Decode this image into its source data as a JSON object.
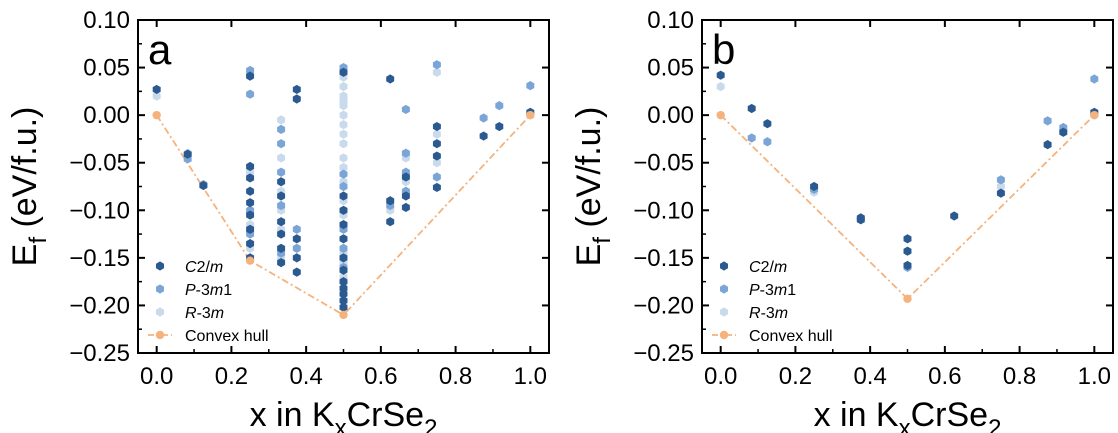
{
  "chart_data": [
    {
      "type": "scatter",
      "panel_label": "a",
      "xlabel": "x in K",
      "xlabel_sub": "x",
      "xlabel_tail": "CrSe",
      "xlabel_sub2": "2",
      "ylabel": "E",
      "ylabel_sub": "f",
      "ylabel_tail": " (eV/f.u.)",
      "xlim": [
        -0.05,
        1.05
      ],
      "ylim": [
        -0.25,
        0.1
      ],
      "xticks": [
        0.0,
        0.2,
        0.4,
        0.6,
        0.8,
        1.0
      ],
      "xtick_labels": [
        "0.0",
        "0.2",
        "0.4",
        "0.6",
        "0.8",
        "1.0"
      ],
      "yticks": [
        0.1,
        0.05,
        0.0,
        -0.05,
        -0.1,
        -0.15,
        -0.2,
        -0.25
      ],
      "ytick_labels": [
        "0.10",
        "0.05",
        "0.00",
        "−0.05",
        "−0.10",
        "−0.15",
        "−0.20",
        "−0.25"
      ],
      "legend_position": "bottom-left",
      "series": [
        {
          "name": "C2/m",
          "color": "#2b5a91",
          "points": [
            [
              0.0,
              0.027
            ],
            [
              0.083,
              -0.041
            ],
            [
              0.125,
              -0.074
            ],
            [
              0.25,
              0.041
            ],
            [
              0.25,
              -0.054
            ],
            [
              0.25,
              -0.066
            ],
            [
              0.25,
              -0.08
            ],
            [
              0.25,
              -0.092
            ],
            [
              0.25,
              -0.105
            ],
            [
              0.25,
              -0.12
            ],
            [
              0.25,
              -0.135
            ],
            [
              0.25,
              -0.15
            ],
            [
              0.333,
              -0.07
            ],
            [
              0.333,
              -0.085
            ],
            [
              0.333,
              -0.112
            ],
            [
              0.333,
              -0.125
            ],
            [
              0.333,
              -0.14
            ],
            [
              0.333,
              -0.155
            ],
            [
              0.375,
              0.027
            ],
            [
              0.375,
              0.017
            ],
            [
              0.375,
              -0.13
            ],
            [
              0.375,
              -0.15
            ],
            [
              0.375,
              -0.165
            ],
            [
              0.5,
              0.045
            ],
            [
              0.5,
              -0.085
            ],
            [
              0.5,
              -0.1
            ],
            [
              0.5,
              -0.115
            ],
            [
              0.5,
              -0.13
            ],
            [
              0.5,
              -0.15
            ],
            [
              0.5,
              -0.163
            ],
            [
              0.5,
              -0.175
            ],
            [
              0.5,
              -0.182
            ],
            [
              0.5,
              -0.188
            ],
            [
              0.5,
              -0.195
            ],
            [
              0.5,
              -0.202
            ],
            [
              0.625,
              0.038
            ],
            [
              0.625,
              -0.09
            ],
            [
              0.625,
              -0.112
            ],
            [
              0.667,
              -0.065
            ],
            [
              0.667,
              -0.085
            ],
            [
              0.667,
              -0.097
            ],
            [
              0.75,
              -0.012
            ],
            [
              0.75,
              -0.03
            ],
            [
              0.75,
              -0.043
            ],
            [
              0.75,
              -0.076
            ],
            [
              0.875,
              -0.022
            ],
            [
              0.917,
              -0.012
            ],
            [
              1.0,
              0.003
            ]
          ]
        },
        {
          "name": "P-3m1",
          "color": "#7aa5d6",
          "points": [
            [
              0.083,
              -0.046
            ],
            [
              0.125,
              -0.073
            ],
            [
              0.25,
              0.047
            ],
            [
              0.25,
              0.022
            ],
            [
              0.25,
              -0.1
            ],
            [
              0.25,
              -0.125
            ],
            [
              0.333,
              -0.015
            ],
            [
              0.333,
              -0.03
            ],
            [
              0.333,
              -0.06
            ],
            [
              0.333,
              -0.095
            ],
            [
              0.333,
              -0.145
            ],
            [
              0.375,
              -0.12
            ],
            [
              0.375,
              -0.14
            ],
            [
              0.5,
              0.05
            ],
            [
              0.5,
              -0.062
            ],
            [
              0.5,
              -0.075
            ],
            [
              0.5,
              -0.12
            ],
            [
              0.5,
              -0.14
            ],
            [
              0.5,
              -0.16
            ],
            [
              0.625,
              -0.095
            ],
            [
              0.667,
              0.006
            ],
            [
              0.667,
              -0.04
            ],
            [
              0.667,
              -0.06
            ],
            [
              0.667,
              -0.08
            ],
            [
              0.75,
              0.053
            ],
            [
              0.75,
              -0.065
            ],
            [
              0.875,
              -0.003
            ],
            [
              0.917,
              0.01
            ],
            [
              1.0,
              0.031
            ]
          ]
        },
        {
          "name": "R-3m",
          "color": "#c9daed",
          "points": [
            [
              0.0,
              0.02
            ],
            [
              0.083,
              -0.04
            ],
            [
              0.25,
              0.043
            ],
            [
              0.25,
              -0.06
            ],
            [
              0.25,
              -0.115
            ],
            [
              0.25,
              -0.14
            ],
            [
              0.333,
              -0.005
            ],
            [
              0.333,
              -0.045
            ],
            [
              0.333,
              -0.08
            ],
            [
              0.333,
              -0.1
            ],
            [
              0.333,
              -0.12
            ],
            [
              0.333,
              -0.15
            ],
            [
              0.5,
              0.04
            ],
            [
              0.5,
              0.03
            ],
            [
              0.5,
              0.02
            ],
            [
              0.5,
              0.015
            ],
            [
              0.5,
              0.01
            ],
            [
              0.5,
              0.0
            ],
            [
              0.5,
              -0.01
            ],
            [
              0.5,
              -0.02
            ],
            [
              0.5,
              -0.03
            ],
            [
              0.5,
              -0.045
            ],
            [
              0.5,
              -0.055
            ],
            [
              0.5,
              -0.07
            ],
            [
              0.5,
              -0.09
            ],
            [
              0.5,
              -0.105
            ],
            [
              0.5,
              -0.13
            ],
            [
              0.5,
              -0.145
            ],
            [
              0.5,
              -0.155
            ],
            [
              0.5,
              -0.17
            ],
            [
              0.625,
              -0.1
            ],
            [
              0.667,
              -0.045
            ],
            [
              0.667,
              -0.07
            ],
            [
              0.75,
              0.045
            ],
            [
              0.75,
              -0.02
            ],
            [
              0.75,
              -0.05
            ],
            [
              1.0,
              0.0
            ]
          ]
        },
        {
          "name": "Convex hull",
          "color": "#f5b27c",
          "line": true,
          "points": [
            [
              0.0,
              0.0
            ],
            [
              0.25,
              -0.153
            ],
            [
              0.5,
              -0.21
            ],
            [
              1.0,
              0.0
            ]
          ]
        }
      ]
    },
    {
      "type": "scatter",
      "panel_label": "b",
      "xlabel": "x in K",
      "xlabel_sub": "x",
      "xlabel_tail": "CrSe",
      "xlabel_sub2": "2",
      "ylabel": "E",
      "ylabel_sub": "f",
      "ylabel_tail": " (eV/f.u.)",
      "xlim": [
        -0.05,
        1.05
      ],
      "ylim": [
        -0.25,
        0.1
      ],
      "xticks": [
        0.0,
        0.2,
        0.4,
        0.6,
        0.8,
        1.0
      ],
      "xtick_labels": [
        "0.0",
        "0.2",
        "0.4",
        "0.6",
        "0.8",
        "1.0"
      ],
      "yticks": [
        0.1,
        0.05,
        0.0,
        -0.05,
        -0.1,
        -0.15,
        -0.2,
        -0.25
      ],
      "ytick_labels": [
        "0.10",
        "0.05",
        "0.00",
        "−0.05",
        "−0.10",
        "−0.15",
        "−0.20",
        "−0.25"
      ],
      "legend_position": "bottom-left",
      "series": [
        {
          "name": "C2/m",
          "color": "#2b5a91",
          "points": [
            [
              0.0,
              0.042
            ],
            [
              0.083,
              0.007
            ],
            [
              0.125,
              -0.009
            ],
            [
              0.25,
              -0.075
            ],
            [
              0.375,
              -0.108
            ],
            [
              0.375,
              -0.11
            ],
            [
              0.5,
              -0.13
            ],
            [
              0.5,
              -0.143
            ],
            [
              0.5,
              -0.158
            ],
            [
              0.625,
              -0.106
            ],
            [
              0.75,
              -0.082
            ],
            [
              0.875,
              -0.031
            ],
            [
              0.917,
              -0.018
            ],
            [
              1.0,
              0.003
            ]
          ]
        },
        {
          "name": "P-3m1",
          "color": "#7aa5d6",
          "points": [
            [
              0.083,
              -0.024
            ],
            [
              0.125,
              -0.028
            ],
            [
              0.25,
              -0.078
            ],
            [
              0.5,
              -0.16
            ],
            [
              0.75,
              -0.068
            ],
            [
              0.875,
              -0.006
            ],
            [
              0.917,
              -0.013
            ],
            [
              1.0,
              0.038
            ]
          ]
        },
        {
          "name": "R-3m",
          "color": "#c9daed",
          "points": [
            [
              0.0,
              0.03
            ],
            [
              0.25,
              -0.081
            ],
            [
              0.75,
              -0.075
            ],
            [
              0.917,
              -0.016
            ],
            [
              1.0,
              0.0
            ]
          ]
        },
        {
          "name": "Convex hull",
          "color": "#f5b27c",
          "line": true,
          "points": [
            [
              0.0,
              0.0
            ],
            [
              0.5,
              -0.193
            ],
            [
              1.0,
              0.0
            ]
          ]
        }
      ]
    }
  ]
}
